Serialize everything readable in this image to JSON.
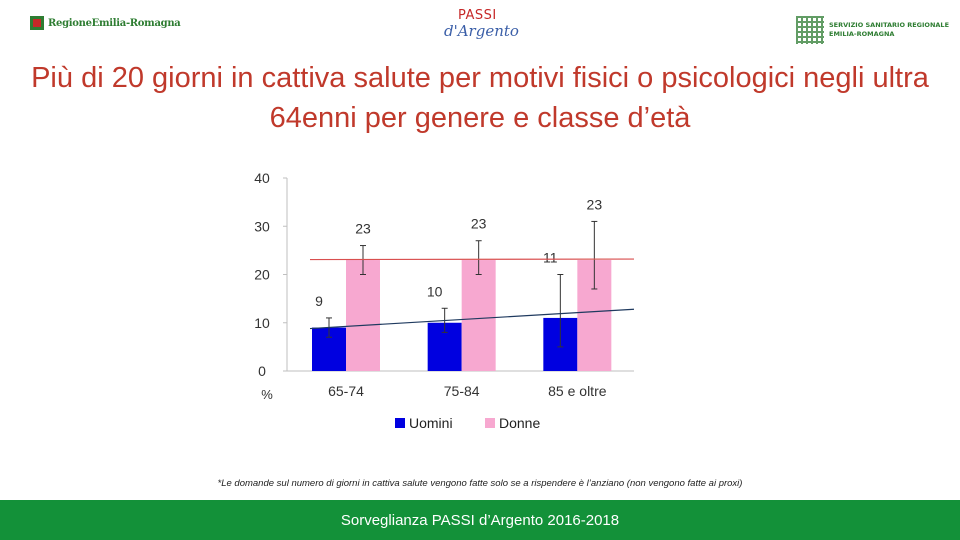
{
  "logos": {
    "left_text": "RegioneEmilia-Romagna",
    "center_top": "PASSI",
    "center_main": "d'Argento",
    "right_line1": "SERVIZIO SANITARIO REGIONALE",
    "right_line2": "EMILIA-ROMAGNA"
  },
  "title": "Più di 20 giorni in cattiva salute per motivi fisici o psicologici negli ultra 64enni per genere e classe d’età",
  "footnote": "*Le domande sul numero di giorni in cattiva salute vengono fatte solo se a rispendere è l’anziano (non vengono fatte ai proxi)",
  "footer": "Sorveglianza PASSI d’Argento 2016-2018",
  "colors": {
    "men": "#0000e0",
    "women": "#f7a8d0",
    "men_trend": "#1f3a5f",
    "women_trend": "#d94f4f",
    "title": "#c0392b",
    "footer_bg": "#139139"
  },
  "chart_data": {
    "type": "bar",
    "categories": [
      "65-74",
      "75-84",
      "85 e oltre"
    ],
    "series": [
      {
        "name": "Uomini",
        "values": [
          9,
          10,
          11
        ],
        "labels": [
          "9",
          "10",
          "11"
        ],
        "error_low": [
          7,
          8,
          5
        ],
        "error_high": [
          11,
          13,
          20
        ]
      },
      {
        "name": "Donne",
        "values": [
          23,
          23,
          23
        ],
        "labels": [
          "23",
          "23",
          "23"
        ],
        "error_low": [
          20,
          20,
          17
        ],
        "error_high": [
          26,
          27,
          31
        ]
      }
    ],
    "trend_lines": [
      {
        "series": "Uomini",
        "start": 8.8,
        "end": 12.8
      },
      {
        "series": "Donne",
        "start": 23.1,
        "end": 23.2
      }
    ],
    "yticks": [
      "0",
      "10",
      "20",
      "30",
      "40"
    ],
    "ylim": [
      0,
      40
    ],
    "ylabel": "%",
    "legend_position": "bottom",
    "grid": false
  }
}
